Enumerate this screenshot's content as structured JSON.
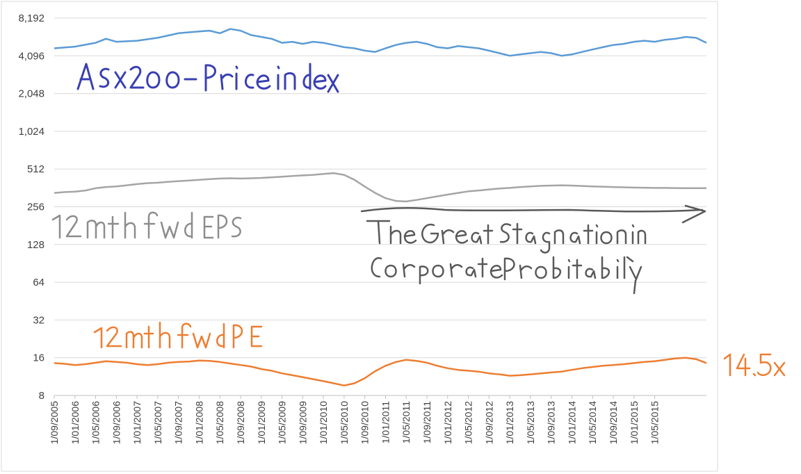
{
  "chart_data": {
    "type": "line",
    "y_scale": "log2",
    "ylim": [
      8,
      8192
    ],
    "y_ticks": [
      "8,192",
      "4,096",
      "2,048",
      "1,024",
      "512",
      "256",
      "128",
      "64",
      "32",
      "16",
      "8"
    ],
    "y_tick_values": [
      8192,
      4096,
      2048,
      1024,
      512,
      256,
      128,
      64,
      32,
      16,
      8
    ],
    "x_tick_labels": [
      "1/09/2005",
      "1/01/2006",
      "1/05/2006",
      "1/09/2006",
      "1/01/2007",
      "1/05/2007",
      "1/09/2007",
      "1/01/2008",
      "1/05/2008",
      "1/09/2008",
      "1/01/2009",
      "1/05/2009",
      "1/09/2009",
      "1/01/2010",
      "1/05/2010",
      "1/09/2010",
      "1/01/2011",
      "1/05/2011",
      "1/09/2011",
      "1/01/2012",
      "1/05/2012",
      "1/09/2012",
      "1/01/2013",
      "1/05/2013",
      "1/09/2013",
      "1/01/2014",
      "1/05/2014",
      "1/09/2014",
      "1/01/2015",
      "1/05/2015"
    ],
    "x_range_months": [
      0,
      126
    ],
    "grid": "horizontal",
    "legend": "none",
    "series": [
      {
        "name": "ASX200 - Price index",
        "color": "#5b9bd5",
        "points": [
          [
            0,
            4700
          ],
          [
            4,
            4850
          ],
          [
            8,
            5200
          ],
          [
            10,
            5600
          ],
          [
            12,
            5300
          ],
          [
            16,
            5400
          ],
          [
            20,
            5700
          ],
          [
            24,
            6200
          ],
          [
            28,
            6400
          ],
          [
            30,
            6500
          ],
          [
            32,
            6200
          ],
          [
            34,
            6700
          ],
          [
            36,
            6500
          ],
          [
            38,
            6000
          ],
          [
            40,
            5800
          ],
          [
            42,
            5600
          ],
          [
            44,
            5200
          ],
          [
            46,
            5300
          ],
          [
            48,
            5100
          ],
          [
            50,
            5300
          ],
          [
            52,
            5200
          ],
          [
            54,
            5000
          ],
          [
            56,
            4800
          ],
          [
            58,
            4700
          ],
          [
            60,
            4500
          ],
          [
            62,
            4400
          ],
          [
            64,
            4700
          ],
          [
            66,
            5000
          ],
          [
            68,
            5200
          ],
          [
            70,
            5300
          ],
          [
            72,
            5100
          ],
          [
            74,
            4800
          ],
          [
            76,
            4700
          ],
          [
            78,
            4900
          ],
          [
            80,
            4800
          ],
          [
            82,
            4700
          ],
          [
            84,
            4500
          ],
          [
            86,
            4300
          ],
          [
            88,
            4100
          ],
          [
            90,
            4200
          ],
          [
            92,
            4300
          ],
          [
            94,
            4400
          ],
          [
            96,
            4300
          ],
          [
            98,
            4100
          ],
          [
            100,
            4200
          ],
          [
            102,
            4400
          ],
          [
            104,
            4600
          ],
          [
            106,
            4800
          ],
          [
            108,
            5000
          ],
          [
            110,
            5100
          ],
          [
            112,
            5300
          ],
          [
            114,
            5400
          ],
          [
            116,
            5300
          ],
          [
            118,
            5500
          ],
          [
            120,
            5600
          ],
          [
            122,
            5800
          ],
          [
            124,
            5700
          ],
          [
            126,
            5200
          ]
        ]
      },
      {
        "name": "12mth fwd EPS",
        "color": "#a5a5a5",
        "points": [
          [
            0,
            330
          ],
          [
            2,
            335
          ],
          [
            4,
            338
          ],
          [
            6,
            345
          ],
          [
            8,
            360
          ],
          [
            10,
            368
          ],
          [
            12,
            372
          ],
          [
            14,
            380
          ],
          [
            16,
            388
          ],
          [
            18,
            395
          ],
          [
            20,
            398
          ],
          [
            22,
            405
          ],
          [
            24,
            410
          ],
          [
            26,
            415
          ],
          [
            28,
            420
          ],
          [
            30,
            425
          ],
          [
            32,
            430
          ],
          [
            34,
            432
          ],
          [
            36,
            430
          ],
          [
            38,
            432
          ],
          [
            40,
            435
          ],
          [
            42,
            440
          ],
          [
            44,
            445
          ],
          [
            46,
            450
          ],
          [
            48,
            455
          ],
          [
            50,
            460
          ],
          [
            52,
            468
          ],
          [
            54,
            475
          ],
          [
            56,
            460
          ],
          [
            58,
            420
          ],
          [
            60,
            370
          ],
          [
            62,
            330
          ],
          [
            64,
            300
          ],
          [
            66,
            285
          ],
          [
            68,
            282
          ],
          [
            70,
            290
          ],
          [
            72,
            300
          ],
          [
            74,
            310
          ],
          [
            76,
            320
          ],
          [
            78,
            330
          ],
          [
            80,
            340
          ],
          [
            82,
            345
          ],
          [
            84,
            352
          ],
          [
            86,
            358
          ],
          [
            88,
            362
          ],
          [
            90,
            368
          ],
          [
            92,
            372
          ],
          [
            94,
            376
          ],
          [
            96,
            378
          ],
          [
            98,
            380
          ],
          [
            100,
            378
          ],
          [
            102,
            375
          ],
          [
            104,
            372
          ],
          [
            106,
            370
          ],
          [
            108,
            368
          ],
          [
            110,
            366
          ],
          [
            112,
            364
          ],
          [
            114,
            363
          ],
          [
            116,
            362
          ],
          [
            118,
            362
          ],
          [
            120,
            361
          ],
          [
            122,
            360
          ],
          [
            124,
            360
          ],
          [
            126,
            360
          ]
        ]
      },
      {
        "name": "12mth fwd PE",
        "color": "#ed7d31",
        "points": [
          [
            0,
            14.5
          ],
          [
            2,
            14.3
          ],
          [
            4,
            14.0
          ],
          [
            6,
            14.2
          ],
          [
            8,
            14.6
          ],
          [
            10,
            15.0
          ],
          [
            12,
            14.8
          ],
          [
            14,
            14.6
          ],
          [
            16,
            14.2
          ],
          [
            18,
            14.0
          ],
          [
            20,
            14.2
          ],
          [
            22,
            14.6
          ],
          [
            24,
            14.8
          ],
          [
            26,
            14.9
          ],
          [
            28,
            15.2
          ],
          [
            30,
            15.1
          ],
          [
            32,
            14.8
          ],
          [
            34,
            14.4
          ],
          [
            36,
            14.0
          ],
          [
            38,
            13.6
          ],
          [
            40,
            13.0
          ],
          [
            42,
            12.6
          ],
          [
            44,
            12.0
          ],
          [
            46,
            11.6
          ],
          [
            48,
            11.2
          ],
          [
            50,
            10.8
          ],
          [
            52,
            10.4
          ],
          [
            54,
            10.0
          ],
          [
            56,
            9.6
          ],
          [
            58,
            10.0
          ],
          [
            60,
            11.0
          ],
          [
            62,
            12.5
          ],
          [
            64,
            13.8
          ],
          [
            66,
            14.8
          ],
          [
            68,
            15.4
          ],
          [
            70,
            15.1
          ],
          [
            72,
            14.6
          ],
          [
            74,
            13.8
          ],
          [
            76,
            13.2
          ],
          [
            78,
            12.8
          ],
          [
            80,
            12.6
          ],
          [
            82,
            12.4
          ],
          [
            84,
            12.0
          ],
          [
            86,
            11.8
          ],
          [
            88,
            11.5
          ],
          [
            90,
            11.6
          ],
          [
            92,
            11.8
          ],
          [
            94,
            12.0
          ],
          [
            96,
            12.2
          ],
          [
            98,
            12.4
          ],
          [
            100,
            12.8
          ],
          [
            102,
            13.2
          ],
          [
            104,
            13.5
          ],
          [
            106,
            13.8
          ],
          [
            108,
            14.0
          ],
          [
            110,
            14.2
          ],
          [
            112,
            14.5
          ],
          [
            114,
            14.8
          ],
          [
            116,
            15.0
          ],
          [
            118,
            15.4
          ],
          [
            120,
            15.8
          ],
          [
            122,
            16.0
          ],
          [
            124,
            15.6
          ],
          [
            126,
            14.5
          ]
        ]
      }
    ]
  }
}
